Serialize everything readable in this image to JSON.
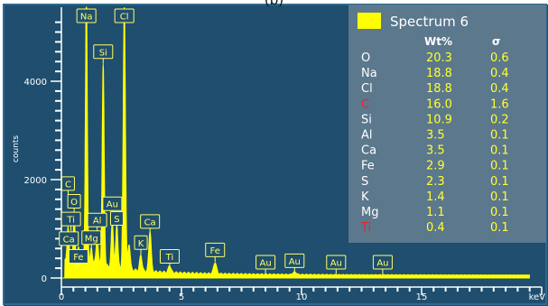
{
  "page_label": "(b)",
  "chart_data": {
    "type": "line",
    "xlabel": "keV",
    "ylabel": "counts",
    "xlim": [
      0,
      20
    ],
    "ylim": [
      -100,
      5300
    ],
    "x_ticks": [
      0,
      5,
      10,
      15
    ],
    "y_ticks": [
      0,
      2000,
      4000
    ],
    "series": [
      {
        "name": "Spectrum 6",
        "color": "#ffff00",
        "peaks": [
          {
            "x": 0.28,
            "y": 700
          },
          {
            "x": 0.53,
            "y": 880
          },
          {
            "x": 0.71,
            "y": 220
          },
          {
            "x": 1.04,
            "y": 5350
          },
          {
            "x": 1.25,
            "y": 250
          },
          {
            "x": 1.49,
            "y": 560
          },
          {
            "x": 1.74,
            "y": 4050
          },
          {
            "x": 2.12,
            "y": 920
          },
          {
            "x": 2.31,
            "y": 880
          },
          {
            "x": 2.62,
            "y": 5350
          },
          {
            "x": 2.82,
            "y": 520
          },
          {
            "x": 3.31,
            "y": 320
          },
          {
            "x": 3.69,
            "y": 820
          },
          {
            "x": 4.51,
            "y": 140
          },
          {
            "x": 6.4,
            "y": 230
          },
          {
            "x": 9.71,
            "y": 50
          }
        ]
      }
    ],
    "annotations": [
      {
        "text": "Na",
        "x": 1.04,
        "y": 5330
      },
      {
        "text": "Cl",
        "x": 2.62,
        "y": 5330
      },
      {
        "text": "Si",
        "x": 1.74,
        "y": 4600
      },
      {
        "text": "C",
        "x": 0.28,
        "y": 1920
      },
      {
        "text": "O",
        "x": 0.53,
        "y": 1560
      },
      {
        "text": "Ti",
        "x": 0.4,
        "y": 1200
      },
      {
        "text": "Au",
        "x": 2.12,
        "y": 1510
      },
      {
        "text": "Al",
        "x": 1.49,
        "y": 1180
      },
      {
        "text": "S",
        "x": 2.31,
        "y": 1210
      },
      {
        "text": "Ca",
        "x": 3.69,
        "y": 1150
      },
      {
        "text": "Mg",
        "x": 1.25,
        "y": 820
      },
      {
        "text": "Ca",
        "x": 0.31,
        "y": 800
      },
      {
        "text": "K",
        "x": 3.31,
        "y": 720
      },
      {
        "text": "Fe",
        "x": 0.71,
        "y": 440
      },
      {
        "text": "Ti",
        "x": 4.51,
        "y": 440
      },
      {
        "text": "Fe",
        "x": 6.4,
        "y": 570
      },
      {
        "text": "Au",
        "x": 8.5,
        "y": 320
      },
      {
        "text": "Au",
        "x": 9.71,
        "y": 350
      },
      {
        "text": "Au",
        "x": 11.44,
        "y": 320
      },
      {
        "text": "Au",
        "x": 13.38,
        "y": 320
      }
    ],
    "table": {
      "title": "Spectrum 6",
      "headers": [
        "Wt%",
        "σ"
      ],
      "rows": [
        {
          "element": "O",
          "wt": "20.3",
          "sigma": "0.6",
          "color": "#ffffff"
        },
        {
          "element": "Na",
          "wt": "18.8",
          "sigma": "0.4",
          "color": "#ffffff"
        },
        {
          "element": "Cl",
          "wt": "18.8",
          "sigma": "0.4",
          "color": "#ffffff"
        },
        {
          "element": "C",
          "wt": "16.0",
          "sigma": "1.6",
          "color": "#e8262c"
        },
        {
          "element": "Si",
          "wt": "10.9",
          "sigma": "0.2",
          "color": "#ffffff"
        },
        {
          "element": "Al",
          "wt": "3.5",
          "sigma": "0.1",
          "color": "#ffffff"
        },
        {
          "element": "Ca",
          "wt": "3.5",
          "sigma": "0.1",
          "color": "#ffffff"
        },
        {
          "element": "Fe",
          "wt": "2.9",
          "sigma": "0.1",
          "color": "#ffffff"
        },
        {
          "element": "S",
          "wt": "2.3",
          "sigma": "0.1",
          "color": "#ffffff"
        },
        {
          "element": "K",
          "wt": "1.4",
          "sigma": "0.1",
          "color": "#ffffff"
        },
        {
          "element": "Mg",
          "wt": "1.1",
          "sigma": "0.1",
          "color": "#ffffff"
        },
        {
          "element": "Ti",
          "wt": "0.4",
          "sigma": "0.1",
          "color": "#e8262c"
        }
      ]
    }
  }
}
